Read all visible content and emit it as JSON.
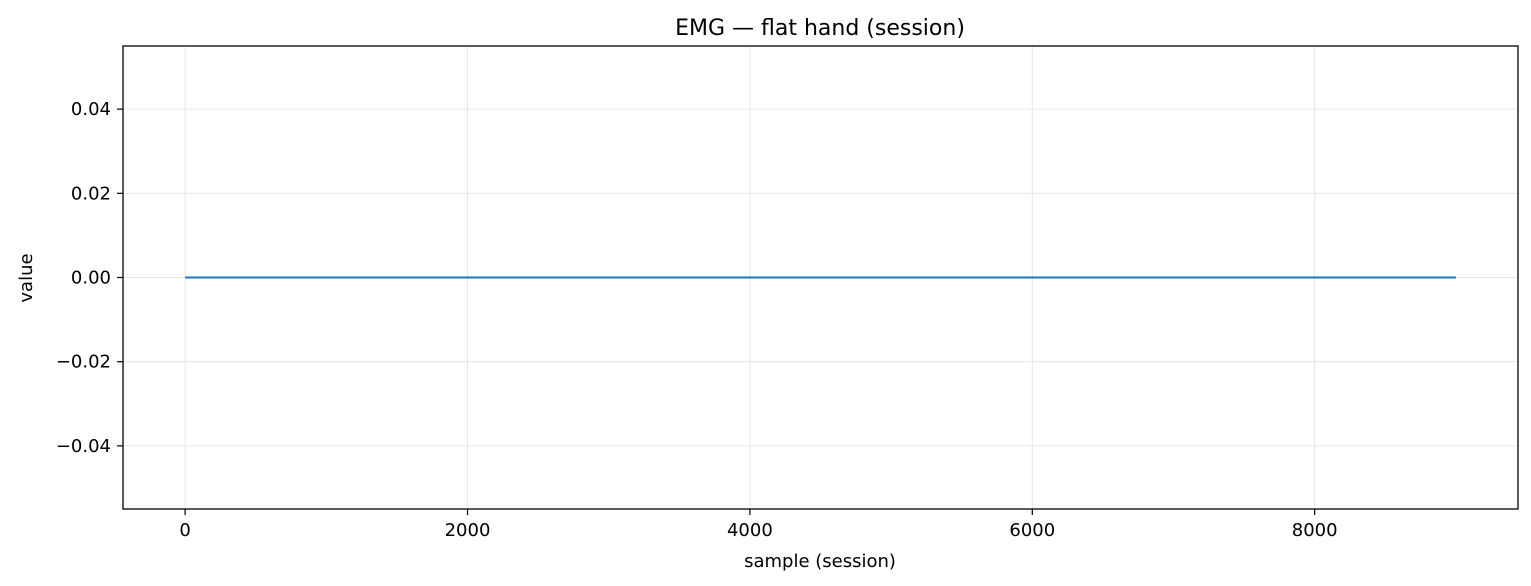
{
  "chart_data": {
    "type": "line",
    "title": "EMG — flat hand (session)",
    "xlabel": "sample (session)",
    "ylabel": "value",
    "xlim": [
      -440,
      9440
    ],
    "ylim": [
      -0.055,
      0.055
    ],
    "x_ticks": [
      0,
      2000,
      4000,
      6000,
      8000
    ],
    "x_tick_labels": [
      "0",
      "2000",
      "4000",
      "6000",
      "8000"
    ],
    "y_ticks": [
      -0.04,
      -0.02,
      0.0,
      0.02,
      0.04
    ],
    "y_tick_labels": [
      "−0.04",
      "−0.02",
      "0.00",
      "0.02",
      "0.04"
    ],
    "grid": true,
    "series": [
      {
        "x": [
          0,
          9000
        ],
        "y": [
          0.0,
          0.0
        ]
      }
    ],
    "colors": {
      "line": "#1f77b4",
      "grid": "#e6e6e6",
      "axes": "#000000"
    }
  }
}
